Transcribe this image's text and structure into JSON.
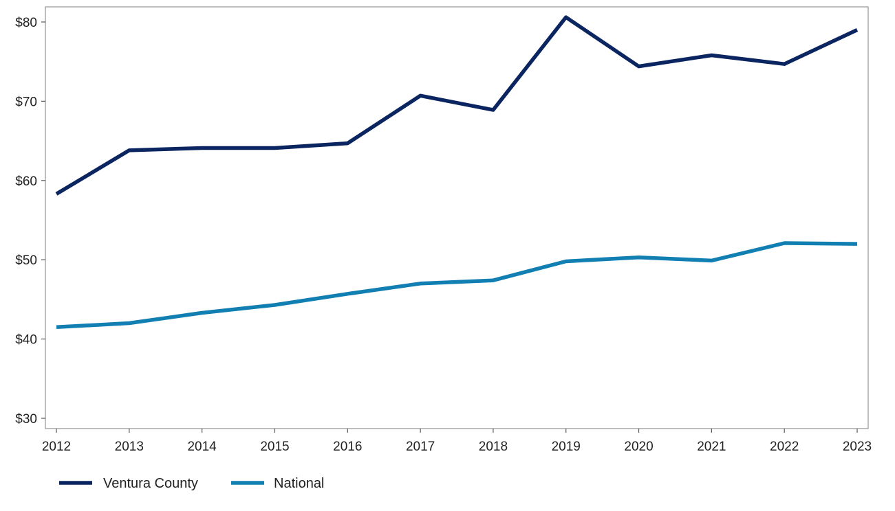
{
  "chart_data": {
    "type": "line",
    "title": "",
    "xlabel": "",
    "ylabel": "",
    "x": [
      2012,
      2013,
      2014,
      2015,
      2016,
      2017,
      2018,
      2019,
      2020,
      2021,
      2022,
      2023
    ],
    "xticks": [
      "2012",
      "2013",
      "2014",
      "2015",
      "2016",
      "2017",
      "2018",
      "2019",
      "2020",
      "2021",
      "2022",
      "2023"
    ],
    "xlim": [
      2012,
      2023
    ],
    "ylim": [
      29,
      82
    ],
    "yticks": [
      30,
      40,
      50,
      60,
      70,
      80
    ],
    "ytick_labels": [
      "$30",
      "$40",
      "$50",
      "$60",
      "$70",
      "$80"
    ],
    "grid": false,
    "legend_position": "bottom-left",
    "series": [
      {
        "name": "Ventura County",
        "color": "#0b2560",
        "values": [
          58.3,
          63.8,
          64.1,
          64.1,
          64.7,
          70.7,
          68.9,
          80.6,
          74.4,
          75.8,
          74.7,
          79.0
        ]
      },
      {
        "name": "National",
        "color": "#127fb3",
        "values": [
          41.5,
          42.0,
          43.3,
          44.3,
          45.7,
          47.0,
          47.4,
          49.8,
          50.3,
          49.9,
          52.1,
          52.0
        ]
      }
    ]
  }
}
